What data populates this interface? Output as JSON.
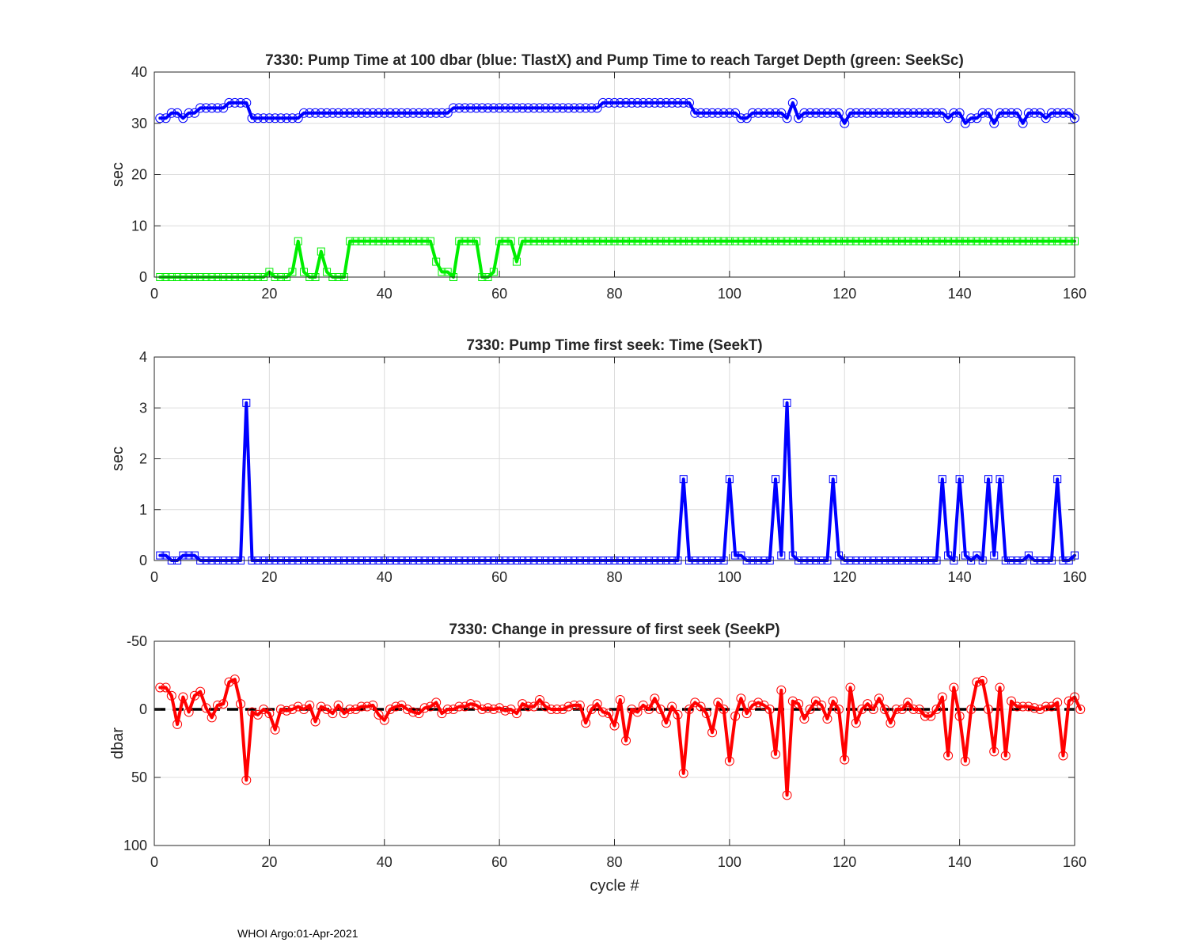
{
  "footer": "WHOI Argo:01-Apr-2021",
  "chart_data": [
    {
      "type": "line",
      "title": "7330:  Pump Time at 100 dbar (blue: TlastX) and Pump Time to reach Target Depth (green: SeekSc)",
      "xlabel": "",
      "ylabel": "sec",
      "xlim": [
        0,
        160
      ],
      "ylim": [
        0,
        40
      ],
      "y_reversed": false,
      "xticks": [
        0,
        20,
        40,
        60,
        80,
        100,
        120,
        140,
        160
      ],
      "yticks": [
        0,
        10,
        20,
        30,
        40
      ],
      "grid": true,
      "series": [
        {
          "color": "#0000ff",
          "marker": "circle",
          "x_start": 1,
          "values": [
            31,
            31,
            32,
            32,
            31,
            32,
            32,
            33,
            33,
            33,
            33,
            33,
            34,
            34,
            34,
            34,
            31,
            31,
            31,
            31,
            31,
            31,
            31,
            31,
            31,
            32,
            32,
            32,
            32,
            32,
            32,
            32,
            32,
            32,
            32,
            32,
            32,
            32,
            32,
            32,
            32,
            32,
            32,
            32,
            32,
            32,
            32,
            32,
            32,
            32,
            32,
            33,
            33,
            33,
            33,
            33,
            33,
            33,
            33,
            33,
            33,
            33,
            33,
            33,
            33,
            33,
            33,
            33,
            33,
            33,
            33,
            33,
            33,
            33,
            33,
            33,
            33,
            34,
            34,
            34,
            34,
            34,
            34,
            34,
            34,
            34,
            34,
            34,
            34,
            34,
            34,
            34,
            34,
            32,
            32,
            32,
            32,
            32,
            32,
            32,
            32,
            31,
            31,
            32,
            32,
            32,
            32,
            32,
            32,
            31,
            34,
            31,
            32,
            32,
            32,
            32,
            32,
            32,
            32,
            30,
            32,
            32,
            32,
            32,
            32,
            32,
            32,
            32,
            32,
            32,
            32,
            32,
            32,
            32,
            32,
            32,
            32,
            31,
            32,
            32,
            30,
            31,
            31,
            32,
            32,
            30,
            32,
            32,
            32,
            32,
            30,
            32,
            32,
            32,
            31,
            32,
            32,
            32,
            32,
            31
          ]
        },
        {
          "color": "#00ee00",
          "marker": "square",
          "x_start": 1,
          "values": [
            0,
            0,
            0,
            0,
            0,
            0,
            0,
            0,
            0,
            0,
            0,
            0,
            0,
            0,
            0,
            0,
            0,
            0,
            0,
            1,
            0,
            0,
            0,
            1,
            7,
            1,
            0,
            0,
            5,
            1,
            0,
            0,
            0,
            7,
            7,
            7,
            7,
            7,
            7,
            7,
            7,
            7,
            7,
            7,
            7,
            7,
            7,
            7,
            3,
            1,
            1,
            0,
            7,
            7,
            7,
            7,
            0,
            0,
            1,
            7,
            7,
            7,
            3,
            7,
            7,
            7,
            7,
            7,
            7,
            7,
            7,
            7,
            7,
            7,
            7,
            7,
            7,
            7,
            7,
            7,
            7,
            7,
            7,
            7,
            7,
            7,
            7,
            7,
            7,
            7,
            7,
            7,
            7,
            7,
            7,
            7,
            7,
            7,
            7,
            7,
            7,
            7,
            7,
            7,
            7,
            7,
            7,
            7,
            7,
            7,
            7,
            7,
            7,
            7,
            7,
            7,
            7,
            7,
            7,
            7,
            7,
            7,
            7,
            7,
            7,
            7,
            7,
            7,
            7,
            7,
            7,
            7,
            7,
            7,
            7,
            7,
            7,
            7,
            7,
            7,
            7,
            7,
            7,
            7,
            7,
            7,
            7,
            7,
            7,
            7,
            7,
            7,
            7,
            7,
            7,
            7,
            7,
            7,
            7,
            7
          ]
        }
      ]
    },
    {
      "type": "line",
      "title": "7330: Pump Time first seek: Time (SeekT)",
      "xlabel": "",
      "ylabel": "sec",
      "xlim": [
        0,
        160
      ],
      "ylim": [
        0,
        4
      ],
      "y_reversed": false,
      "xticks": [
        0,
        20,
        40,
        60,
        80,
        100,
        120,
        140,
        160
      ],
      "yticks": [
        0,
        1,
        2,
        3,
        4
      ],
      "grid": true,
      "series": [
        {
          "color": "#0000ff",
          "marker": "square",
          "x_start": 1,
          "values": [
            0.1,
            0.1,
            0,
            0,
            0.1,
            0.1,
            0.1,
            0,
            0,
            0,
            0,
            0,
            0,
            0,
            0,
            3.1,
            0,
            0,
            0,
            0,
            0,
            0,
            0,
            0,
            0,
            0,
            0,
            0,
            0,
            0,
            0,
            0,
            0,
            0,
            0,
            0,
            0,
            0,
            0,
            0,
            0,
            0,
            0,
            0,
            0,
            0,
            0,
            0,
            0,
            0,
            0,
            0,
            0,
            0,
            0,
            0,
            0,
            0,
            0,
            0,
            0,
            0,
            0,
            0,
            0,
            0,
            0,
            0,
            0,
            0,
            0,
            0,
            0,
            0,
            0,
            0,
            0,
            0,
            0,
            0,
            0,
            0,
            0,
            0,
            0,
            0,
            0,
            0,
            0,
            0,
            0,
            1.6,
            0,
            0,
            0,
            0,
            0,
            0,
            0,
            1.6,
            0.1,
            0.1,
            0,
            0,
            0,
            0,
            0,
            1.6,
            0.1,
            3.1,
            0.1,
            0,
            0,
            0,
            0,
            0,
            0,
            1.6,
            0.1,
            0,
            0,
            0,
            0,
            0,
            0,
            0,
            0,
            0,
            0,
            0,
            0,
            0,
            0,
            0,
            0,
            0,
            1.6,
            0.1,
            0,
            1.6,
            0.1,
            0,
            0.1,
            0,
            1.6,
            0.1,
            1.6,
            0,
            0,
            0,
            0,
            0.1,
            0,
            0,
            0,
            0,
            1.6,
            0,
            0,
            0.1
          ]
        }
      ]
    },
    {
      "type": "line",
      "title": "7330: Change in pressure of first seek (SeekP)",
      "xlabel": "cycle #",
      "ylabel": "dbar",
      "xlim": [
        0,
        160
      ],
      "ylim": [
        -50,
        100
      ],
      "y_reversed": true,
      "xticks": [
        0,
        20,
        40,
        60,
        80,
        100,
        120,
        140,
        160
      ],
      "yticks": [
        -50,
        0,
        50,
        100
      ],
      "grid": true,
      "reference_line": {
        "y": 0,
        "color": "#000000",
        "style": "dashed"
      },
      "series": [
        {
          "color": "#ff0000",
          "marker": "circle",
          "x_start": 1,
          "values": [
            -16,
            -16,
            -10,
            11,
            -9,
            2,
            -10,
            -13,
            -1,
            6,
            -3,
            -4,
            -20,
            -22,
            -4,
            52,
            2,
            4,
            0,
            3,
            15,
            0,
            1,
            0,
            -2,
            0,
            -3,
            9,
            -2,
            0,
            3,
            -3,
            3,
            0,
            0,
            -2,
            -2,
            -3,
            4,
            8,
            0,
            -2,
            -3,
            0,
            2,
            3,
            -1,
            -2,
            -5,
            3,
            0,
            0,
            -2,
            -2,
            -4,
            -3,
            0,
            -1,
            0,
            -1,
            1,
            0,
            3,
            -4,
            -2,
            -2,
            -7,
            -2,
            0,
            0,
            0,
            -2,
            -3,
            -3,
            10,
            0,
            -4,
            2,
            3,
            12,
            -7,
            23,
            0,
            2,
            -3,
            0,
            -8,
            0,
            10,
            -2,
            4,
            47,
            0,
            -5,
            -2,
            3,
            17,
            -5,
            0,
            38,
            5,
            -8,
            3,
            -3,
            -5,
            -3,
            0,
            33,
            -14,
            63,
            -6,
            -4,
            7,
            0,
            -6,
            -3,
            7,
            -6,
            0,
            37,
            -16,
            10,
            0,
            -4,
            0,
            -8,
            0,
            10,
            0,
            0,
            -5,
            0,
            0,
            5,
            5,
            0,
            -9,
            34,
            -16,
            5,
            38,
            0,
            -20,
            -21,
            0,
            31,
            -16,
            34,
            -6,
            -2,
            -2,
            -2,
            -1,
            0,
            -2,
            -2,
            -5,
            34,
            -6,
            -9,
            0
          ]
        }
      ]
    }
  ]
}
